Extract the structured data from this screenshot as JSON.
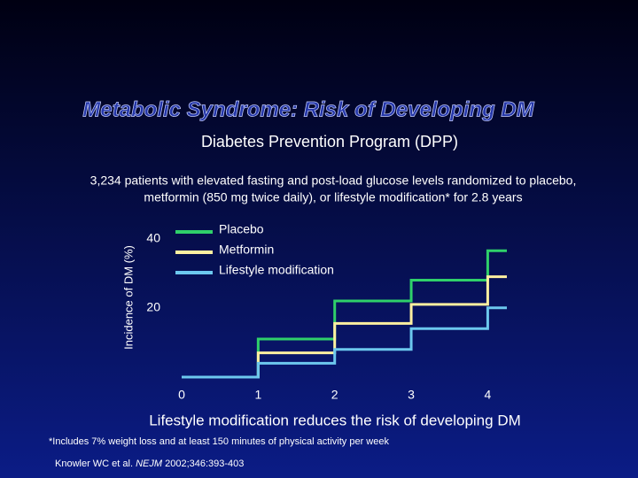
{
  "header": {
    "title": "Metabolic Syndrome: Risk of Developing DM",
    "subtitle": "Diabetes Prevention Program (DPP)",
    "description": [
      "3,234 patients with elevated fasting and post-load glucose levels randomized to placebo,",
      "metformin (850 mg twice daily), or lifestyle modification* for 2.8 years"
    ]
  },
  "chart_data": {
    "type": "step",
    "ylabel": "Incidence of DM (%)",
    "x": [
      0,
      1,
      2,
      3,
      4,
      4.25
    ],
    "series": [
      {
        "name": "Placebo",
        "color": "#2fd06a",
        "values": [
          0,
          11,
          22,
          28,
          36.5,
          36.5
        ]
      },
      {
        "name": "Metformin",
        "color": "#fff0a0",
        "values": [
          0,
          7,
          15.5,
          21,
          29,
          29
        ]
      },
      {
        "name": "Lifestyle modification",
        "color": "#6cc8ee",
        "values": [
          0,
          4,
          8,
          14,
          20,
          20
        ]
      }
    ],
    "xlim": [
      0,
      4.25
    ],
    "ylim": [
      0,
      45
    ],
    "xticks": [
      0,
      1,
      2,
      3,
      4
    ],
    "yticks": [
      20,
      40
    ],
    "grid": false
  },
  "conclusion": "Lifestyle modification reduces the risk of developing DM",
  "footnote": "*Includes 7% weight loss and at least 150 minutes of physical activity per week",
  "reference": {
    "authors": "Knowler WC et al.",
    "journal": "NEJM",
    "citation": "2002;346:393-403"
  }
}
